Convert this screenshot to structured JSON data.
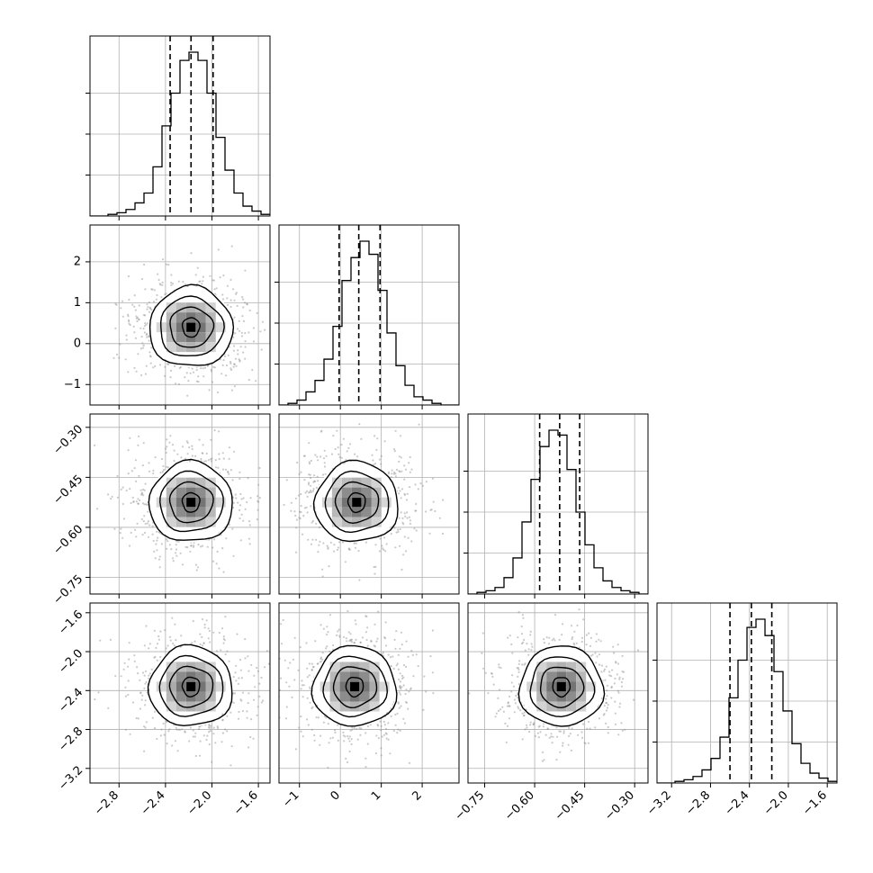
{
  "chart_data": {
    "type": "corner",
    "grid": true,
    "parameters": [
      {
        "range": [
          -3.05,
          -1.5
        ],
        "ticks": [
          -2.8,
          -2.4,
          -2.0,
          -1.6
        ],
        "tick_labels": [
          "−2.8",
          "−2.4",
          "−2.0",
          "−1.6"
        ],
        "quantiles": [
          -2.36,
          -2.18,
          -1.99
        ],
        "histogram": {
          "edges_start": -3.05,
          "bin_width": 0.0775,
          "counts": [
            0,
            0,
            1,
            2,
            4,
            8,
            14,
            30,
            55,
            75,
            95,
            100,
            95,
            75,
            48,
            28,
            14,
            6,
            3,
            1
          ]
        }
      },
      {
        "range": [
          -1.5,
          2.9
        ],
        "ticks": [
          -1,
          0,
          1,
          2
        ],
        "tick_labels": [
          "−1",
          "0",
          "1",
          "2"
        ],
        "quantiles": [
          -0.03,
          0.45,
          0.97
        ],
        "histogram": {
          "edges_start": -1.5,
          "bin_width": 0.22,
          "counts": [
            0,
            1,
            3,
            8,
            15,
            28,
            48,
            76,
            90,
            100,
            92,
            70,
            44,
            24,
            12,
            5,
            3,
            1,
            0,
            0
          ]
        }
      },
      {
        "range": [
          -0.8,
          -0.26
        ],
        "ticks": [
          -0.75,
          -0.6,
          -0.45,
          -0.3
        ],
        "tick_labels": [
          "−0.75",
          "−0.60",
          "−0.45",
          "−0.30"
        ],
        "quantiles": [
          -0.585,
          -0.525,
          -0.465
        ],
        "histogram": {
          "edges_start": -0.8,
          "bin_width": 0.027,
          "counts": [
            0,
            1,
            2,
            4,
            10,
            22,
            44,
            70,
            90,
            100,
            97,
            76,
            50,
            30,
            16,
            8,
            4,
            2,
            1,
            0
          ]
        }
      },
      {
        "range": [
          -3.35,
          -1.5
        ],
        "ticks": [
          -3.2,
          -2.8,
          -2.4,
          -2.0,
          -1.6
        ],
        "tick_labels": [
          "−3.2",
          "−2.8",
          "−2.4",
          "−2.0",
          "−1.6"
        ],
        "quantiles": [
          -2.6,
          -2.38,
          -2.17
        ],
        "histogram": {
          "edges_start": -3.35,
          "bin_width": 0.0925,
          "counts": [
            0,
            0,
            1,
            2,
            4,
            8,
            15,
            28,
            52,
            75,
            95,
            100,
            90,
            68,
            44,
            24,
            12,
            6,
            3,
            1
          ]
        }
      }
    ],
    "peaks_2d": {
      "1,0": [
        -2.18,
        0.4
      ],
      "2,0": [
        -2.18,
        -0.525
      ],
      "2,1": [
        0.4,
        -0.525
      ],
      "3,0": [
        -2.18,
        -2.36
      ],
      "3,1": [
        0.35,
        -2.36
      ],
      "3,2": [
        -0.52,
        -2.36
      ]
    },
    "contour_levels": [
      "0.5σ",
      "1σ",
      "1.5σ",
      "2σ"
    ]
  },
  "style": {
    "line_color": "#000000",
    "grid_color": "#b0b0b0",
    "scatter_color": "#8a8a8a"
  }
}
